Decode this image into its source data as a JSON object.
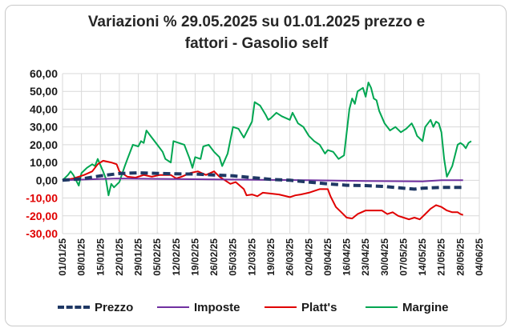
{
  "chart_data": {
    "type": "line",
    "title_line1": "Variazioni % 29.05.2025 su 01.01.2025 prezzo e",
    "title_line2": "fattori - Gasolio self",
    "xlabel": "",
    "ylabel": "",
    "ylim": [
      -30,
      60
    ],
    "yticks": [
      "60,00",
      "50,00",
      "40,00",
      "30,00",
      "20,00",
      "10,00",
      "0,00",
      "-10,00",
      "-20,00",
      "-30,00"
    ],
    "x_tick_labels": [
      "01/01/25",
      "08/01/25",
      "15/01/25",
      "22/01/25",
      "29/01/25",
      "05/02/25",
      "12/02/25",
      "19/02/25",
      "26/02/25",
      "05/03/25",
      "12/03/25",
      "19/03/25",
      "26/03/25",
      "02/04/25",
      "09/04/25",
      "16/04/25",
      "23/04/25",
      "30/04/25",
      "07/05/25",
      "14/05/25",
      "21/05/25",
      "28/05/25",
      "04/06/25"
    ],
    "x_range_days": [
      0,
      154
    ],
    "grid": true,
    "legend_position": "bottom",
    "series": [
      {
        "name": "Prezzo",
        "color": "#1f3864",
        "style": "dashed",
        "points": [
          [
            0,
            0
          ],
          [
            7,
            0.8
          ],
          [
            14,
            2.5
          ],
          [
            21,
            3.8
          ],
          [
            28,
            4.2
          ],
          [
            35,
            3.9
          ],
          [
            42,
            3.6
          ],
          [
            49,
            3.5
          ],
          [
            56,
            3.0
          ],
          [
            63,
            2.5
          ],
          [
            70,
            1.5
          ],
          [
            77,
            0.5
          ],
          [
            84,
            0
          ],
          [
            91,
            -1
          ],
          [
            98,
            -2
          ],
          [
            105,
            -2.8
          ],
          [
            112,
            -3
          ],
          [
            119,
            -3.5
          ],
          [
            126,
            -4.5
          ],
          [
            130,
            -5
          ],
          [
            133,
            -4.5
          ],
          [
            140,
            -4
          ],
          [
            147,
            -4
          ],
          [
            148,
            -4
          ]
        ]
      },
      {
        "name": "Imposte",
        "color": "#7030a0",
        "style": "solid",
        "points": [
          [
            0,
            0
          ],
          [
            20,
            1
          ],
          [
            35,
            0.8
          ],
          [
            56,
            0.5
          ],
          [
            91,
            0
          ],
          [
            112,
            -0.4
          ],
          [
            133,
            -0.6
          ],
          [
            140,
            0
          ],
          [
            148,
            0
          ]
        ]
      },
      {
        "name": "Platt's",
        "color": "#e00000",
        "style": "solid",
        "points": [
          [
            0,
            0
          ],
          [
            4,
            1
          ],
          [
            8,
            3
          ],
          [
            11,
            5
          ],
          [
            13,
            9
          ],
          [
            15,
            11
          ],
          [
            18,
            10
          ],
          [
            20,
            9
          ],
          [
            21,
            5
          ],
          [
            24,
            2
          ],
          [
            27,
            1.5
          ],
          [
            30,
            3
          ],
          [
            33,
            2
          ],
          [
            36,
            3
          ],
          [
            40,
            3
          ],
          [
            42,
            1
          ],
          [
            44,
            2
          ],
          [
            47,
            4
          ],
          [
            50,
            5
          ],
          [
            53,
            3
          ],
          [
            56,
            5
          ],
          [
            58,
            2
          ],
          [
            60,
            0
          ],
          [
            62,
            -2
          ],
          [
            64,
            -1
          ],
          [
            67,
            -5
          ],
          [
            68,
            -8.5
          ],
          [
            70,
            -8
          ],
          [
            72,
            -9
          ],
          [
            74,
            -7
          ],
          [
            77,
            -7.5
          ],
          [
            80,
            -8
          ],
          [
            84,
            -9.5
          ],
          [
            86,
            -8.5
          ],
          [
            88,
            -8
          ],
          [
            91,
            -7
          ],
          [
            93,
            -6
          ],
          [
            95,
            -5
          ],
          [
            98,
            -5
          ],
          [
            99,
            -9
          ],
          [
            101,
            -15
          ],
          [
            103,
            -18
          ],
          [
            105,
            -21
          ],
          [
            107,
            -21.5
          ],
          [
            109,
            -19
          ],
          [
            112,
            -17
          ],
          [
            115,
            -17
          ],
          [
            118,
            -17
          ],
          [
            120,
            -19
          ],
          [
            122,
            -18
          ],
          [
            124,
            -20
          ],
          [
            126,
            -21
          ],
          [
            128,
            -22
          ],
          [
            130,
            -21
          ],
          [
            132,
            -22
          ],
          [
            134,
            -19
          ],
          [
            136,
            -16
          ],
          [
            138,
            -14
          ],
          [
            140,
            -15
          ],
          [
            142,
            -17
          ],
          [
            144,
            -18
          ],
          [
            146,
            -18
          ],
          [
            147,
            -19
          ],
          [
            148,
            -19.5
          ]
        ]
      },
      {
        "name": "Margine",
        "color": "#00a651",
        "style": "solid",
        "points": [
          [
            0,
            0
          ],
          [
            2,
            3
          ],
          [
            3,
            5
          ],
          [
            4,
            3
          ],
          [
            6,
            -3
          ],
          [
            7,
            4
          ],
          [
            9,
            7
          ],
          [
            11,
            9
          ],
          [
            12,
            8
          ],
          [
            13,
            12
          ],
          [
            15,
            5
          ],
          [
            16,
            1
          ],
          [
            17,
            -8.5
          ],
          [
            18,
            -2
          ],
          [
            19,
            -4
          ],
          [
            21,
            -1
          ],
          [
            23,
            8
          ],
          [
            24,
            12
          ],
          [
            26,
            20
          ],
          [
            28,
            19
          ],
          [
            29,
            22
          ],
          [
            30,
            21
          ],
          [
            31,
            28
          ],
          [
            33,
            24
          ],
          [
            35,
            20
          ],
          [
            37,
            16
          ],
          [
            38,
            12
          ],
          [
            40,
            10
          ],
          [
            41,
            22
          ],
          [
            43,
            21
          ],
          [
            45,
            20
          ],
          [
            47,
            12
          ],
          [
            48,
            7
          ],
          [
            49,
            13
          ],
          [
            51,
            12
          ],
          [
            52,
            19
          ],
          [
            54,
            20
          ],
          [
            56,
            16
          ],
          [
            58,
            13
          ],
          [
            59,
            8
          ],
          [
            61,
            15
          ],
          [
            63,
            30
          ],
          [
            65,
            29
          ],
          [
            67,
            24
          ],
          [
            69,
            30
          ],
          [
            70,
            33
          ],
          [
            71,
            44
          ],
          [
            73,
            42
          ],
          [
            75,
            37
          ],
          [
            76,
            34
          ],
          [
            77,
            35
          ],
          [
            79,
            38
          ],
          [
            81,
            36
          ],
          [
            84,
            34
          ],
          [
            85,
            38
          ],
          [
            87,
            32
          ],
          [
            89,
            30
          ],
          [
            91,
            25
          ],
          [
            93,
            22
          ],
          [
            95,
            20
          ],
          [
            97,
            15
          ],
          [
            98,
            17
          ],
          [
            100,
            16
          ],
          [
            102,
            12
          ],
          [
            103,
            13
          ],
          [
            104,
            14
          ],
          [
            106,
            40
          ],
          [
            107,
            46
          ],
          [
            108,
            43
          ],
          [
            109,
            50
          ],
          [
            111,
            52
          ],
          [
            112,
            47
          ],
          [
            113,
            55
          ],
          [
            114,
            52
          ],
          [
            115,
            46
          ],
          [
            116,
            45
          ],
          [
            117,
            39
          ],
          [
            119,
            32
          ],
          [
            121,
            28
          ],
          [
            123,
            30
          ],
          [
            125,
            27
          ],
          [
            127,
            29
          ],
          [
            129,
            32
          ],
          [
            130,
            29
          ],
          [
            131,
            25
          ],
          [
            133,
            22
          ],
          [
            134,
            30
          ],
          [
            136,
            34
          ],
          [
            137,
            30
          ],
          [
            138,
            33
          ],
          [
            139,
            32
          ],
          [
            140,
            27
          ],
          [
            141,
            12
          ],
          [
            142,
            2
          ],
          [
            143,
            5
          ],
          [
            144,
            8
          ],
          [
            145,
            14
          ],
          [
            146,
            20
          ],
          [
            147,
            21
          ],
          [
            148,
            20
          ],
          [
            149,
            18
          ],
          [
            150,
            21
          ],
          [
            151,
            22
          ]
        ]
      }
    ]
  }
}
